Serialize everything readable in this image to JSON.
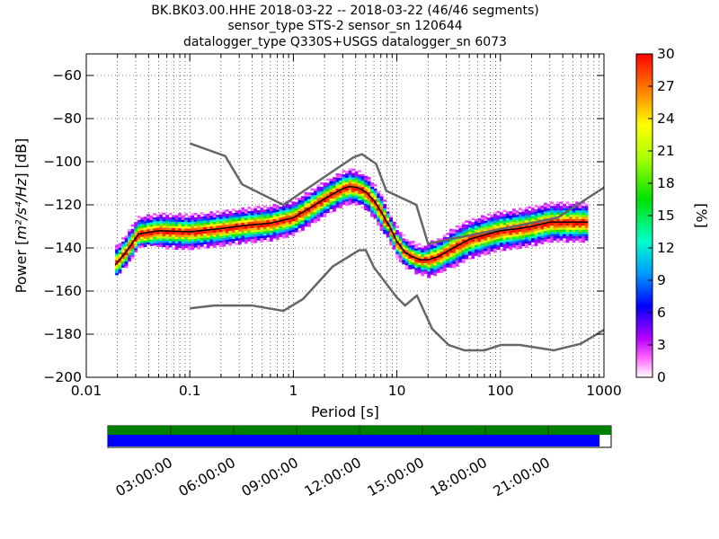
{
  "chart_data": {
    "type": "heatmap",
    "title_lines": [
      "BK.BK03.00.HHE   2018-03-22 -- 2018-03-22  (46/46 segments)",
      "sensor_type STS-2 sensor_sn 120644",
      "datalogger_type Q330S+USGS datalogger_sn 6073"
    ],
    "xlabel": "Period [s]",
    "ylabel_text": "Power [",
    "ylabel_unit": "m²/s⁴/Hz",
    "ylabel_end": "] [dB]",
    "x_scale": "log",
    "xlim": [
      0.01,
      1000
    ],
    "ylim": [
      -200,
      -50
    ],
    "x_ticks": [
      0.01,
      0.1,
      1,
      10,
      100,
      1000
    ],
    "x_tick_labels": [
      "0.01",
      "0.1",
      "1",
      "10",
      "100",
      "1000"
    ],
    "y_ticks": [
      -200,
      -180,
      -160,
      -140,
      -120,
      -100,
      -80,
      -60
    ],
    "y_tick_labels": [
      "−200",
      "−180",
      "−160",
      "−140",
      "−120",
      "−100",
      "−80",
      "−60"
    ],
    "grid": true,
    "colorbar": {
      "label": "[%]",
      "min": 0,
      "max": 30,
      "ticks": [
        0,
        3,
        6,
        9,
        12,
        15,
        18,
        21,
        24,
        27,
        30
      ],
      "tick_labels": [
        "0",
        "3",
        "6",
        "9",
        "12",
        "15",
        "18",
        "21",
        "24",
        "27",
        "30"
      ]
    },
    "series": [
      {
        "role": "mean",
        "color": "#000000",
        "x": [
          0.019,
          0.025,
          0.032,
          0.05,
          0.1,
          0.2,
          0.35,
          0.6,
          1.0,
          1.5,
          2.2,
          3.0,
          3.5,
          4.2,
          5.0,
          6.0,
          7.0,
          8.5,
          10,
          12,
          14,
          17,
          20,
          25,
          35,
          50,
          70,
          100,
          150,
          200,
          300,
          500,
          700
        ],
        "y": [
          -148,
          -141,
          -133.5,
          -132,
          -132.5,
          -131,
          -129.5,
          -128.5,
          -126,
          -121,
          -116,
          -112.5,
          -111.5,
          -112,
          -114,
          -118,
          -123,
          -130,
          -137,
          -142,
          -144,
          -145.5,
          -145.5,
          -144,
          -140,
          -136,
          -134,
          -132,
          -131,
          -130,
          -128,
          -128,
          -128
        ]
      }
    ],
    "noise_models": {
      "color": "#666666",
      "high": {
        "x": [
          0.1,
          0.22,
          0.32,
          0.8,
          3.8,
          4.6,
          6.3,
          7.9,
          15.4,
          20,
          354.8,
          1000
        ],
        "y": [
          -91.5,
          -97.4,
          -110.5,
          -120,
          -98,
          -96.5,
          -101,
          -113.5,
          -120,
          -138,
          -126,
          -112
        ]
      },
      "low": {
        "x": [
          0.1,
          0.17,
          0.4,
          0.8,
          1.24,
          2.4,
          4.3,
          5.0,
          6.0,
          10,
          12,
          15.6,
          21.9,
          31.6,
          45,
          70,
          101,
          154,
          328,
          600,
          1000
        ],
        "y": [
          -168,
          -166.7,
          -166.7,
          -169.2,
          -163.7,
          -148.6,
          -141.1,
          -141,
          -149,
          -163,
          -166.7,
          -162.1,
          -177.5,
          -185,
          -187.5,
          -187.5,
          -185,
          -185,
          -187.5,
          -184.4,
          -178
        ]
      }
    }
  },
  "data_availability": {
    "time_ticks": [
      "03:00:00",
      "06:00:00",
      "09:00:00",
      "12:00:00",
      "15:00:00",
      "18:00:00",
      "21:00:00"
    ],
    "coverage_top_fraction": 1.0,
    "coverage_bottom_fraction": 0.977,
    "top_color": "#008000",
    "bottom_color": "#0000ff"
  }
}
